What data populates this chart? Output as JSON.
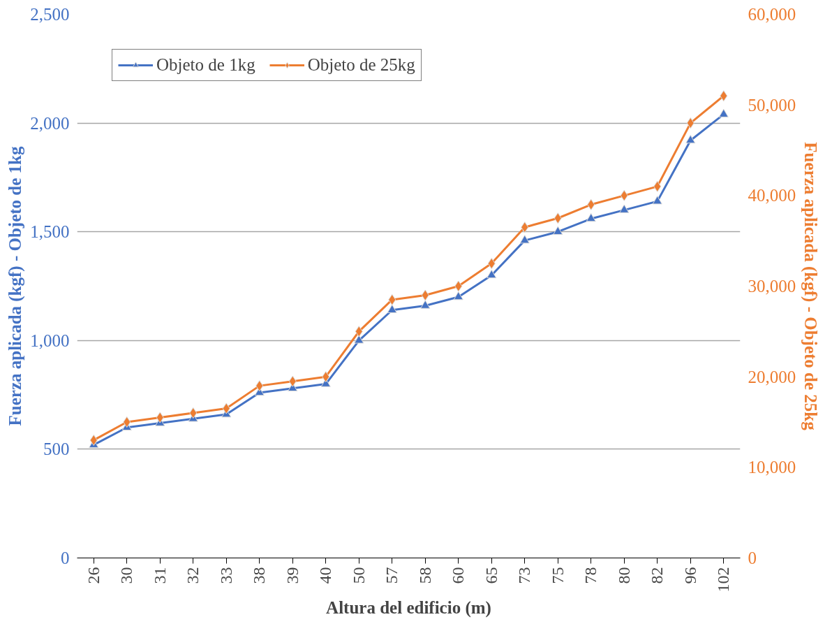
{
  "chart_data": {
    "type": "line",
    "xlabel": "Altura del edificio (m)",
    "ylabel": "Fuerza aplicada (kgf) - Objeto de 1kg",
    "y2label": "Fuerza aplicada (kgf) - Objeto de 25kg",
    "categories": [
      "26",
      "30",
      "31",
      "32",
      "33",
      "38",
      "39",
      "40",
      "50",
      "57",
      "58",
      "60",
      "65",
      "73",
      "75",
      "78",
      "80",
      "82",
      "96",
      "102"
    ],
    "series": [
      {
        "name": "Objeto de 1kg",
        "color": "#4472c4",
        "marker": "triangle",
        "values": [
          520,
          600,
          620,
          640,
          660,
          760,
          780,
          800,
          1000,
          1140,
          1160,
          1200,
          1300,
          1460,
          1500,
          1560,
          1600,
          1640,
          1920,
          2040
        ]
      },
      {
        "name": "Objeto de 25kg",
        "color": "#ed7d31",
        "marker": "diamond",
        "axis": "y2",
        "values": [
          13000,
          15000,
          15500,
          16000,
          16500,
          19000,
          19500,
          20000,
          25000,
          28500,
          29000,
          30000,
          32500,
          36500,
          37500,
          39000,
          40000,
          41000,
          48000,
          51000
        ]
      }
    ],
    "ylim": [
      0,
      2500
    ],
    "yticks": [
      0,
      500,
      {
        "value": 1000,
        "label": "1,000"
      },
      {
        "value": 1500,
        "label": "1,500"
      },
      {
        "value": 2000,
        "label": "2,000"
      },
      {
        "value": 2500,
        "label": "2,500"
      }
    ],
    "y2lim": [
      0,
      60000
    ],
    "y2ticks": [
      0,
      {
        "value": 10000,
        "label": "10,000"
      },
      {
        "value": 20000,
        "label": "20,000"
      },
      {
        "value": 30000,
        "label": "30,000"
      },
      {
        "value": 40000,
        "label": "40,000"
      },
      {
        "value": 50000,
        "label": "50,000"
      },
      {
        "value": 60000,
        "label": "60,000"
      }
    ],
    "grid": "y",
    "legend": "top left",
    "line_style": "solid"
  }
}
